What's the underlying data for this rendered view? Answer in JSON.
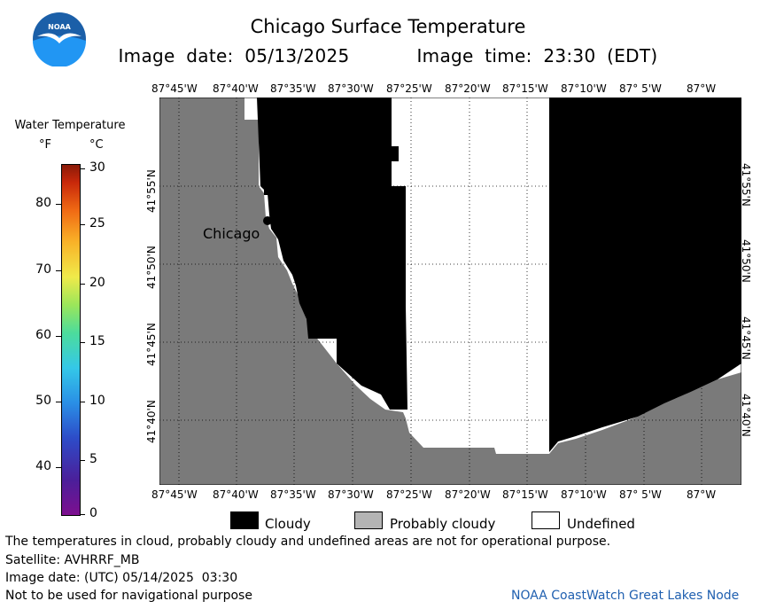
{
  "header": {
    "title": "Chicago Surface Temperature",
    "image_date_line": "Image date: 05/13/2025      Image time: 23:30 (EDT)"
  },
  "logo": {
    "text": "NOAA",
    "colors": {
      "top": "#1b5fa8",
      "bottom": "#2196f3",
      "bird": "#ffffff"
    }
  },
  "colorbar": {
    "title": "Water Temperature",
    "unit_f": "°F",
    "unit_c": "°C",
    "f_ticks": [
      "80",
      "70",
      "60",
      "50",
      "40"
    ],
    "c_ticks": [
      "30",
      "25",
      "20",
      "15",
      "10",
      "5",
      "0"
    ]
  },
  "map": {
    "lon_labels": [
      "87°45'W",
      "87°40'W",
      "87°35'W",
      "87°30'W",
      "87°25'W",
      "87°20'W",
      "87°15'W",
      "87°10'W",
      "87° 5'W",
      "87°W"
    ],
    "lat_labels": [
      "41°55'N",
      "41°50'N",
      "41°45'N",
      "41°40'N"
    ],
    "city_label": "Chicago",
    "colors": {
      "land": "#7a7a7a",
      "cloudy": "#000000",
      "undefined": "#ffffff",
      "grid": "#000000"
    }
  },
  "legend": {
    "cloudy": "Cloudy",
    "probably_cloudy": "Probably cloudy",
    "undefined": "Undefined",
    "colors": {
      "cloudy": "#000000",
      "probably_cloudy": "#b4b4b4",
      "undefined": "#ffffff"
    }
  },
  "footer": {
    "disclaimer": "The temperatures in cloud, probably cloudy and undefined areas are not for operational purpose.",
    "satellite": "Satellite: AVHRRF_MB",
    "utc_date": "Image date: (UTC) 05/14/2025  03:30",
    "navigation": "Not to be used for navigational purpose",
    "credit": "NOAA CoastWatch Great Lakes Node"
  }
}
